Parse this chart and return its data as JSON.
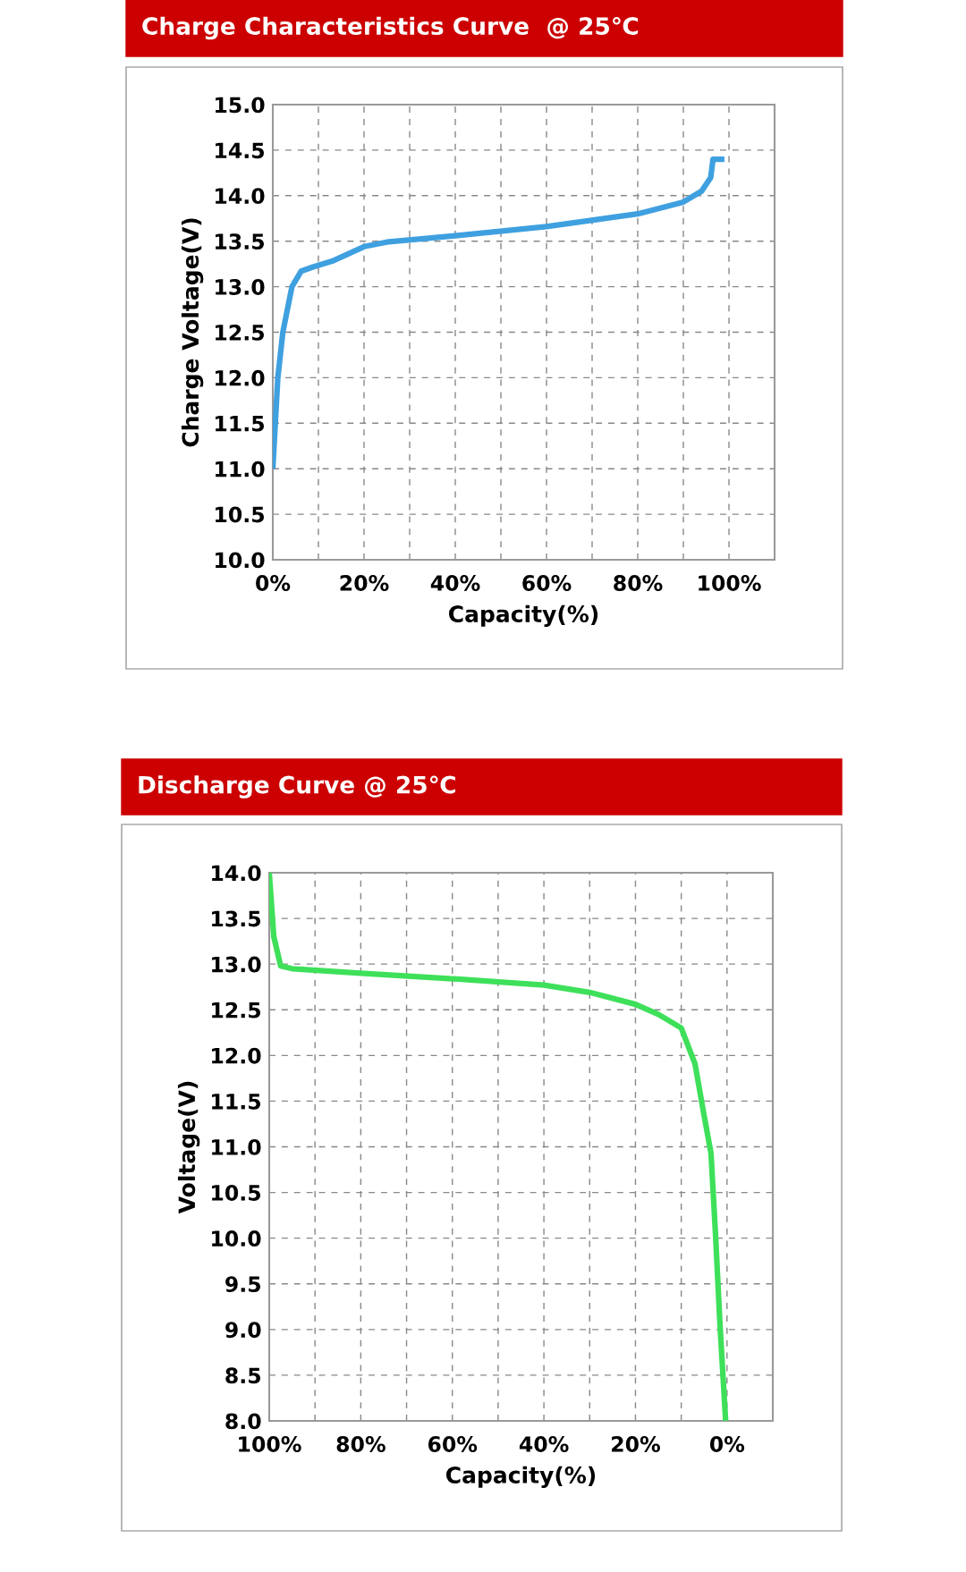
{
  "chart_data": [
    {
      "type": "line",
      "title": "Charge Characteristics Curve  @ 25℃",
      "xlabel": "Capacity(%)",
      "ylabel": "Charge Voltage(V)",
      "x": [
        0,
        1.1,
        2.2,
        4.2,
        6.2,
        9,
        13,
        20,
        25,
        40,
        60,
        80,
        90,
        94,
        96,
        96.5,
        99
      ],
      "series": [
        {
          "color": "#3fa0e0",
          "values": [
            11.0,
            12.0,
            12.5,
            13.0,
            13.17,
            13.22,
            13.28,
            13.44,
            13.49,
            13.56,
            13.66,
            13.8,
            13.93,
            14.05,
            14.2,
            14.4,
            14.4
          ]
        }
      ],
      "xlim": [
        0,
        110
      ],
      "ylim": [
        10,
        15
      ],
      "xticks": [
        {
          "value": 0,
          "label": "0%"
        },
        {
          "value": 10,
          "label": null
        },
        {
          "value": 20,
          "label": "20%"
        },
        {
          "value": 30,
          "label": null
        },
        {
          "value": 40,
          "label": "40%"
        },
        {
          "value": 50,
          "label": null
        },
        {
          "value": 60,
          "label": "60%"
        },
        {
          "value": 70,
          "label": null
        },
        {
          "value": 80,
          "label": "80%"
        },
        {
          "value": 90,
          "label": null
        },
        {
          "value": 100,
          "label": "100%"
        }
      ],
      "yticks": [
        {
          "value": 10,
          "label": "10.0"
        },
        10.5,
        {
          "value": 11,
          "label": "11.0"
        },
        11.5,
        {
          "value": 12,
          "label": "12.0"
        },
        12.5,
        {
          "value": 13,
          "label": "13.0"
        },
        13.5,
        {
          "value": 14,
          "label": "14.0"
        },
        14.5,
        {
          "value": 15,
          "label": "15.0"
        }
      ],
      "grid": true,
      "marker": "none",
      "line_style": "solid"
    },
    {
      "type": "line",
      "title": "Discharge Curve @ 25℃",
      "xlabel": "Capacity(%)",
      "ylabel": "Voltage(V)",
      "x": [
        100,
        99,
        97.5,
        95,
        80,
        60,
        40,
        30,
        20,
        15,
        10,
        7,
        5,
        3.5,
        2.5,
        1.5,
        0.3
      ],
      "series": [
        {
          "color": "#3ee05a",
          "values": [
            14.0,
            13.3,
            12.98,
            12.95,
            12.9,
            12.84,
            12.77,
            12.69,
            12.56,
            12.45,
            12.3,
            11.91,
            11.34,
            10.93,
            10.03,
            9.02,
            8.0
          ]
        }
      ],
      "xlim": [
        100,
        -10
      ],
      "ylim": [
        8,
        14
      ],
      "xticks": [
        {
          "value": 100,
          "label": "100%"
        },
        {
          "value": 90,
          "label": null
        },
        {
          "value": 80,
          "label": "80%"
        },
        {
          "value": 70,
          "label": null
        },
        {
          "value": 60,
          "label": "60%"
        },
        {
          "value": 50,
          "label": null
        },
        {
          "value": 40,
          "label": "40%"
        },
        {
          "value": 30,
          "label": null
        },
        {
          "value": 20,
          "label": "20%"
        },
        {
          "value": 10,
          "label": null
        },
        {
          "value": 0,
          "label": "0%"
        }
      ],
      "yticks": [
        {
          "value": 8,
          "label": "8.0"
        },
        8.5,
        {
          "value": 9,
          "label": "9.0"
        },
        9.5,
        {
          "value": 10,
          "label": "10.0"
        },
        10.5,
        {
          "value": 11,
          "label": "11.0"
        },
        11.5,
        {
          "value": 12,
          "label": "12.0"
        },
        12.5,
        {
          "value": 13,
          "label": "13.0"
        },
        13.5,
        {
          "value": 14,
          "label": "14.0"
        }
      ],
      "grid": true,
      "marker": "none",
      "line_style": "solid"
    }
  ]
}
